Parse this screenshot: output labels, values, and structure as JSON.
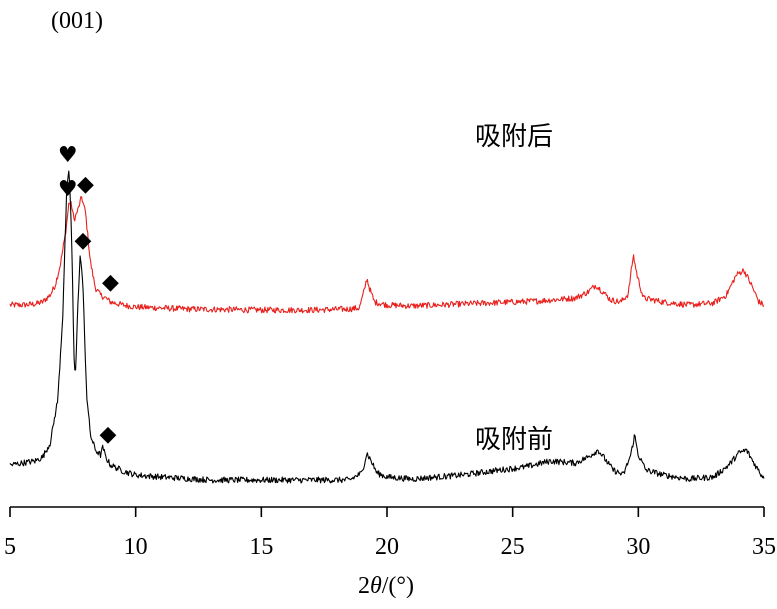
{
  "chart_data": {
    "type": "line",
    "title": "",
    "xlabel_prefix": "2",
    "xlabel_symbol": "θ",
    "xlabel_suffix": "/(°)",
    "ylabel": "",
    "xlim": [
      5,
      35
    ],
    "x_ticks": [
      5,
      10,
      15,
      20,
      25,
      30,
      35
    ],
    "y_axis_shown": false,
    "grid": false,
    "legend": "none",
    "annotation_top": "(001)",
    "series": [
      {
        "name": "吸附后",
        "color": "#e8211d",
        "offset": 175,
        "points": [
          [
            5.0,
            5
          ],
          [
            5.5,
            5
          ],
          [
            6.0,
            6
          ],
          [
            6.3,
            8
          ],
          [
            6.6,
            15
          ],
          [
            6.8,
            25
          ],
          [
            7.0,
            45
          ],
          [
            7.2,
            75
          ],
          [
            7.35,
            108
          ],
          [
            7.45,
            105
          ],
          [
            7.55,
            90
          ],
          [
            7.7,
            100
          ],
          [
            7.85,
            113
          ],
          [
            8.0,
            98
          ],
          [
            8.2,
            48
          ],
          [
            8.4,
            22
          ],
          [
            8.6,
            15
          ],
          [
            8.8,
            12
          ],
          [
            9.0,
            8
          ],
          [
            9.5,
            5
          ],
          [
            10.0,
            3
          ],
          [
            12.0,
            1
          ],
          [
            15.0,
            0
          ],
          [
            17.0,
            0
          ],
          [
            18.5,
            1
          ],
          [
            18.9,
            2
          ],
          [
            19.1,
            20
          ],
          [
            19.2,
            32
          ],
          [
            19.3,
            22
          ],
          [
            19.5,
            8
          ],
          [
            20.0,
            5
          ],
          [
            21.0,
            4
          ],
          [
            23.0,
            6
          ],
          [
            25.0,
            8
          ],
          [
            26.0,
            9
          ],
          [
            26.5,
            10
          ],
          [
            27.5,
            12
          ],
          [
            28.0,
            18
          ],
          [
            28.3,
            25
          ],
          [
            28.6,
            18
          ],
          [
            28.9,
            10
          ],
          [
            29.3,
            8
          ],
          [
            29.6,
            16
          ],
          [
            29.8,
            55
          ],
          [
            29.95,
            35
          ],
          [
            30.2,
            12
          ],
          [
            31.0,
            8
          ],
          [
            32.0,
            5
          ],
          [
            33.0,
            7
          ],
          [
            33.5,
            15
          ],
          [
            33.9,
            35
          ],
          [
            34.2,
            40
          ],
          [
            34.5,
            25
          ],
          [
            34.8,
            8
          ],
          [
            35.0,
            5
          ]
        ]
      },
      {
        "name": "吸附前",
        "color": "#000000",
        "offset": 0,
        "points": [
          [
            5.0,
            20
          ],
          [
            5.5,
            22
          ],
          [
            6.0,
            24
          ],
          [
            6.3,
            28
          ],
          [
            6.6,
            42
          ],
          [
            6.9,
            85
          ],
          [
            7.1,
            170
          ],
          [
            7.25,
            290
          ],
          [
            7.35,
            317
          ],
          [
            7.45,
            250
          ],
          [
            7.55,
            125
          ],
          [
            7.6,
            110
          ],
          [
            7.7,
            180
          ],
          [
            7.8,
            232
          ],
          [
            7.9,
            200
          ],
          [
            8.05,
            90
          ],
          [
            8.2,
            50
          ],
          [
            8.4,
            35
          ],
          [
            8.6,
            30
          ],
          [
            8.7,
            38
          ],
          [
            8.8,
            28
          ],
          [
            9.0,
            20
          ],
          [
            9.5,
            14
          ],
          [
            10.0,
            10
          ],
          [
            11.0,
            8
          ],
          [
            13.0,
            5
          ],
          [
            15.0,
            5
          ],
          [
            17.0,
            5
          ],
          [
            18.5,
            5
          ],
          [
            19.0,
            12
          ],
          [
            19.2,
            32
          ],
          [
            19.35,
            25
          ],
          [
            19.6,
            12
          ],
          [
            20.0,
            8
          ],
          [
            21.0,
            6
          ],
          [
            23.0,
            10
          ],
          [
            24.5,
            15
          ],
          [
            25.5,
            18
          ],
          [
            26.5,
            24
          ],
          [
            27.5,
            22
          ],
          [
            28.0,
            28
          ],
          [
            28.4,
            35
          ],
          [
            28.7,
            25
          ],
          [
            29.0,
            15
          ],
          [
            29.4,
            10
          ],
          [
            29.7,
            30
          ],
          [
            29.85,
            50
          ],
          [
            30.0,
            30
          ],
          [
            30.3,
            15
          ],
          [
            31.0,
            10
          ],
          [
            32.0,
            6
          ],
          [
            33.0,
            8
          ],
          [
            33.6,
            20
          ],
          [
            34.0,
            32
          ],
          [
            34.3,
            35
          ],
          [
            34.6,
            22
          ],
          [
            34.9,
            10
          ],
          [
            35.0,
            8
          ]
        ]
      }
    ],
    "markers": [
      {
        "symbol": "♥",
        "x": 7.3,
        "y": 317,
        "series": 1
      },
      {
        "symbol": "◆",
        "x": 7.9,
        "y": 232,
        "series": 1
      },
      {
        "symbol": "◆",
        "x": 8.9,
        "y": 38,
        "series": 1
      },
      {
        "symbol": "♥",
        "x": 7.3,
        "y": 108,
        "series": 0
      },
      {
        "symbol": "◆",
        "x": 8.0,
        "y": 113,
        "series": 0
      },
      {
        "symbol": "◆",
        "x": 9.0,
        "y": 15,
        "series": 0
      }
    ]
  }
}
